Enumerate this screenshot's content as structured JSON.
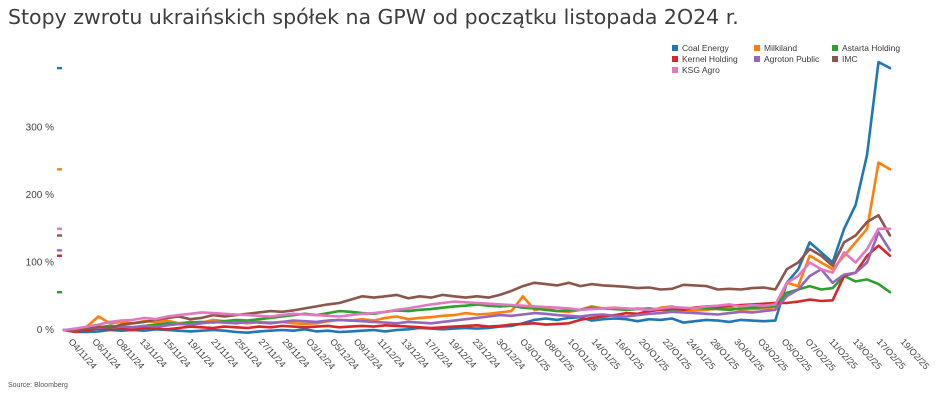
{
  "title": "Stopy zwrotu ukraińskich spółek na GPW od początku listopada 2O24 r.",
  "source": "Source: Bloomberg",
  "chart_data": {
    "type": "line",
    "title": "Stopy zwrotu ukraińskich spółek na GPW od początku listopada 2O24 r.",
    "xlabel": "",
    "ylabel": "",
    "ylim": [
      -5,
      400
    ],
    "yticks": [
      0,
      100,
      200,
      300
    ],
    "ytick_labels": [
      "0 %",
      "100 %",
      "200 %",
      "300 %"
    ],
    "grid": false,
    "legend_position": "top-right",
    "xtick_labels": [
      "O4/11/24",
      "O6/11/24",
      "O8/11/24",
      "13/11/24",
      "15/11/24",
      "19/11/24",
      "21/11/24",
      "25/11/24",
      "27/11/24",
      "29/11/24",
      "O3/12/24",
      "O5/12/24",
      "O9/12/24",
      "11/12/24",
      "13/12/24",
      "17/12/24",
      "19/12/24",
      "23/12/24",
      "3O/12/24",
      "O3/O1/25",
      "O8/O1/25",
      "1O/O1/25",
      "14/O1/25",
      "16/O1/25",
      "2O/O1/25",
      "22/O1/25",
      "24/O1/25",
      "28/O1/25",
      "3O/O1/25",
      "O3/O2/25",
      "O5/O2/25",
      "O7/O2/25",
      "11/O2/25",
      "13/O2/25",
      "17/O2/25",
      "19/O2/25"
    ],
    "series": [
      {
        "name": "Coal Energy",
        "color": "#1f77b4",
        "values": [
          0,
          -3,
          -3,
          -2,
          0,
          -1,
          0,
          -1,
          1,
          0,
          -1,
          -2,
          -1,
          0,
          -1,
          -3,
          -4,
          -2,
          -1,
          0,
          -1,
          1,
          -2,
          -1,
          -3,
          -2,
          -1,
          0,
          -2,
          0,
          1,
          3,
          2,
          1,
          2,
          3,
          2,
          3,
          5,
          6,
          10,
          15,
          17,
          15,
          18,
          19,
          14,
          16,
          17,
          16,
          13,
          16,
          15,
          17,
          11,
          13,
          15,
          14,
          12,
          15,
          14,
          13,
          14,
          70,
          90,
          130,
          115,
          100,
          150,
          185,
          260,
          397,
          388
        ]
      },
      {
        "name": "Milkiland",
        "color": "#ff7f0e",
        "values": [
          0,
          -2,
          5,
          20,
          10,
          12,
          10,
          13,
          12,
          14,
          10,
          12,
          11,
          15,
          13,
          12,
          10,
          12,
          11,
          12,
          10,
          9,
          10,
          13,
          15,
          14,
          16,
          14,
          18,
          20,
          16,
          18,
          19,
          21,
          22,
          25,
          23,
          24,
          26,
          28,
          50,
          30,
          32,
          28,
          27,
          30,
          35,
          32,
          33,
          30,
          32,
          28,
          33,
          35,
          30,
          29,
          30,
          32,
          33,
          30,
          31,
          32,
          30,
          70,
          65,
          110,
          100,
          90,
          110,
          130,
          150,
          248,
          238
        ]
      },
      {
        "name": "Astarta Holding",
        "color": "#2ca02c",
        "values": [
          0,
          1,
          2,
          4,
          6,
          5,
          4,
          6,
          8,
          10,
          9,
          11,
          12,
          11,
          13,
          15,
          14,
          16,
          18,
          20,
          22,
          24,
          22,
          25,
          28,
          27,
          25,
          24,
          27,
          29,
          28,
          30,
          31,
          33,
          35,
          36,
          38,
          36,
          35,
          36,
          33,
          32,
          30,
          28,
          29,
          30,
          33,
          32,
          31,
          30,
          31,
          32,
          30,
          29,
          31,
          33,
          32,
          31,
          30,
          32,
          33,
          34,
          35,
          55,
          60,
          65,
          60,
          62,
          80,
          72,
          75,
          68,
          56
        ]
      },
      {
        "name": "Kernel Holding",
        "color": "#d62728",
        "values": [
          0,
          -3,
          0,
          2,
          1,
          2,
          0,
          3,
          2,
          1,
          3,
          5,
          4,
          3,
          5,
          4,
          3,
          5,
          4,
          6,
          5,
          4,
          5,
          6,
          4,
          5,
          6,
          5,
          7,
          6,
          5,
          4,
          3,
          4,
          5,
          6,
          7,
          5,
          6,
          8,
          9,
          10,
          8,
          9,
          10,
          15,
          18,
          20,
          22,
          25,
          24,
          28,
          30,
          32,
          30,
          33,
          35,
          34,
          36,
          37,
          38,
          39,
          40,
          40,
          42,
          45,
          43,
          44,
          80,
          85,
          110,
          125,
          110
        ]
      },
      {
        "name": "Agroton Public",
        "color": "#9467bd",
        "values": [
          0,
          0,
          2,
          4,
          3,
          5,
          4,
          6,
          5,
          7,
          9,
          8,
          10,
          12,
          11,
          10,
          12,
          11,
          10,
          12,
          14,
          13,
          12,
          14,
          15,
          14,
          13,
          12,
          11,
          10,
          12,
          11,
          10,
          12,
          14,
          16,
          18,
          20,
          22,
          21,
          23,
          25,
          24,
          22,
          21,
          20,
          22,
          23,
          21,
          20,
          22,
          24,
          25,
          27,
          26,
          25,
          24,
          23,
          25,
          27,
          26,
          28,
          30,
          50,
          60,
          80,
          90,
          70,
          82,
          85,
          100,
          145,
          118
        ]
      },
      {
        "name": "IMC",
        "color": "#8c564b",
        "values": [
          0,
          -2,
          2,
          5,
          3,
          8,
          10,
          12,
          15,
          18,
          20,
          16,
          18,
          22,
          20,
          22,
          24,
          26,
          28,
          27,
          29,
          32,
          35,
          38,
          40,
          45,
          50,
          48,
          50,
          52,
          47,
          50,
          48,
          52,
          50,
          48,
          50,
          48,
          52,
          58,
          65,
          70,
          68,
          66,
          70,
          65,
          68,
          66,
          65,
          64,
          62,
          63,
          60,
          61,
          67,
          66,
          65,
          60,
          61,
          60,
          62,
          63,
          60,
          90,
          100,
          120,
          110,
          95,
          130,
          140,
          160,
          170,
          140
        ]
      },
      {
        "name": "KSG Agro",
        "color": "#e377c2",
        "values": [
          0,
          2,
          5,
          8,
          12,
          14,
          15,
          18,
          16,
          20,
          22,
          24,
          26,
          25,
          24,
          23,
          22,
          21,
          20,
          22,
          24,
          23,
          22,
          21,
          20,
          22,
          24,
          25,
          27,
          30,
          32,
          35,
          38,
          40,
          42,
          41,
          40,
          39,
          38,
          37,
          36,
          35,
          34,
          33,
          32,
          30,
          31,
          32,
          33,
          32,
          31,
          30,
          32,
          34,
          33,
          32,
          35,
          36,
          38,
          35,
          37,
          36,
          38,
          70,
          80,
          100,
          90,
          85,
          115,
          100,
          120,
          150,
          150
        ]
      }
    ]
  }
}
